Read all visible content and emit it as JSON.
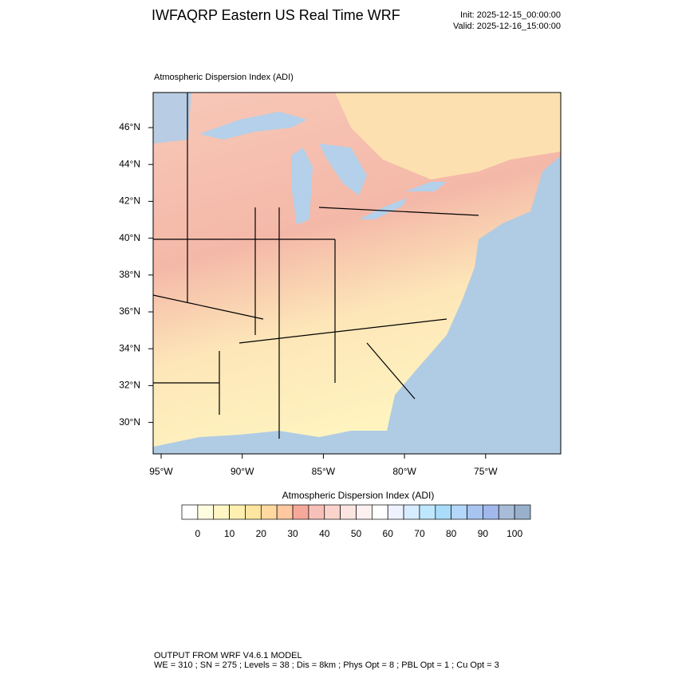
{
  "header": {
    "title": "IWFAQRP Eastern US Real Time WRF",
    "init": "Init: 2025-12-15_00:00:00",
    "valid": "Valid: 2025-12-16_15:00:00"
  },
  "map": {
    "title": "Atmospheric Dispersion Index   (ADI)",
    "lat_labels": [
      "46°N",
      "44°N",
      "42°N",
      "40°N",
      "38°N",
      "36°N",
      "34°N",
      "32°N",
      "30°N"
    ],
    "lon_labels": [
      "95°W",
      "90°W",
      "85°W",
      "80°W",
      "75°W"
    ]
  },
  "colorbar": {
    "title": "Atmospheric Dispersion Index  (ADI)",
    "ticks": [
      0,
      10,
      20,
      30,
      40,
      50,
      60,
      70,
      80,
      90,
      100
    ],
    "colors": [
      "#ffffff",
      "#fffde0",
      "#fff6c4",
      "#fff0b0",
      "#ffe6a0",
      "#ffd9a0",
      "#ffc8a0",
      "#f6a89a",
      "#f7c0b8",
      "#fad4cc",
      "#fce4e0",
      "#fff0f0",
      "#ffffff",
      "#eef2ff",
      "#d8ecff",
      "#bfe8ff",
      "#a8dcfa",
      "#b4d6f8",
      "#a8c4f0",
      "#a0b8ec",
      "#a8bcd8",
      "#98b0cc"
    ]
  },
  "footer": {
    "line1": "OUTPUT FROM WRF V4.6.1 MODEL",
    "line2": "WE = 310 ; SN = 275 ; Levels = 38 ; Dis = 8km ; Phys Opt = 8 ; PBL Opt = 1 ; Cu Opt = 3"
  }
}
